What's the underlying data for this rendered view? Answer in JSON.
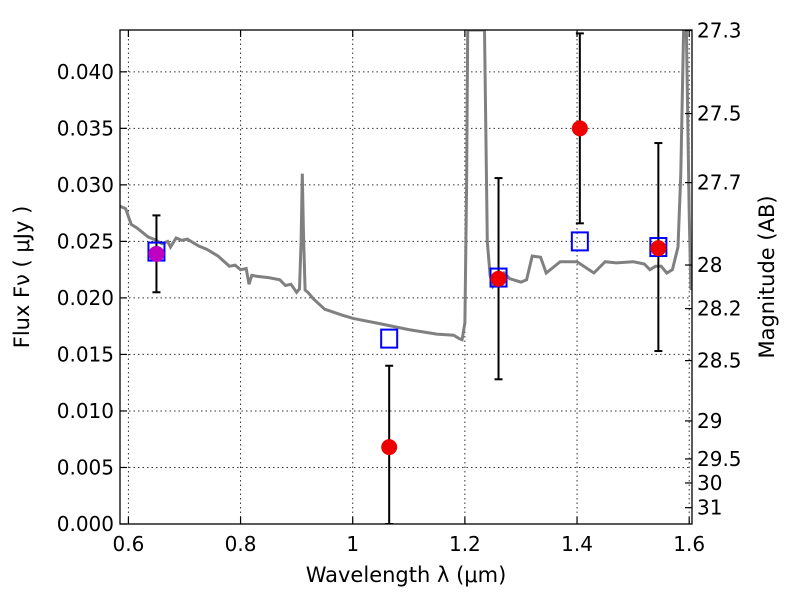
{
  "chart_data": {
    "type": "scatter",
    "xlabel": "Wavelength  λ (μm)",
    "ylabel": "Flux  Fν  ( μJy )",
    "y2label": "Magnitude (AB)",
    "xlim": [
      0.585,
      1.605
    ],
    "ylim": [
      0.0,
      0.0437
    ],
    "grid": true,
    "x_ticks": [
      {
        "v": 0.6,
        "label": "0.6"
      },
      {
        "v": 0.8,
        "label": "0.8"
      },
      {
        "v": 1.0,
        "label": "1"
      },
      {
        "v": 1.2,
        "label": "1.2"
      },
      {
        "v": 1.4,
        "label": "1.4"
      },
      {
        "v": 1.6,
        "label": "1.6"
      }
    ],
    "y_ticks": [
      {
        "v": 0.0,
        "label": "0.000"
      },
      {
        "v": 0.005,
        "label": "0.005"
      },
      {
        "v": 0.01,
        "label": "0.010"
      },
      {
        "v": 0.015,
        "label": "0.015"
      },
      {
        "v": 0.02,
        "label": "0.020"
      },
      {
        "v": 0.025,
        "label": "0.025"
      },
      {
        "v": 0.03,
        "label": "0.030"
      },
      {
        "v": 0.035,
        "label": "0.035"
      },
      {
        "v": 0.04,
        "label": "0.040"
      }
    ],
    "mag_ticks": [
      {
        "label": "27.3",
        "v": 27.3
      },
      {
        "label": "27.5",
        "v": 27.5
      },
      {
        "label": "27.7",
        "v": 27.7
      },
      {
        "label": "28",
        "v": 28.0
      },
      {
        "label": "28.2",
        "v": 28.2
      },
      {
        "label": "28.5",
        "v": 28.5
      },
      {
        "label": "29",
        "v": 29.0
      },
      {
        "label": "29.5",
        "v": 29.5
      },
      {
        "label": "30",
        "v": 30.0
      },
      {
        "label": "31",
        "v": 31.0
      }
    ],
    "model_spectrum": {
      "color": "#808080",
      "x": [
        0.585,
        0.595,
        0.605,
        0.615,
        0.625,
        0.635,
        0.645,
        0.66,
        0.67,
        0.675,
        0.685,
        0.695,
        0.705,
        0.715,
        0.725,
        0.74,
        0.76,
        0.78,
        0.79,
        0.8,
        0.81,
        0.815,
        0.82,
        0.83,
        0.85,
        0.87,
        0.88,
        0.89,
        0.9,
        0.905,
        0.908,
        0.91,
        0.912,
        0.915,
        0.92,
        0.93,
        0.95,
        0.98,
        1.0,
        1.05,
        1.1,
        1.15,
        1.18,
        1.19,
        1.195,
        1.2,
        1.203,
        1.205,
        1.21,
        1.215,
        1.235,
        1.24,
        1.245,
        1.25,
        1.26,
        1.27,
        1.28,
        1.3,
        1.31,
        1.32,
        1.335,
        1.345,
        1.37,
        1.4,
        1.43,
        1.45,
        1.47,
        1.5,
        1.52,
        1.53,
        1.54,
        1.55,
        1.56,
        1.57,
        1.58,
        1.585,
        1.59,
        1.595,
        1.6,
        1.603
      ],
      "y": [
        0.0281,
        0.0279,
        0.0265,
        0.0262,
        0.0258,
        0.0254,
        0.0252,
        0.0248,
        0.025,
        0.0245,
        0.0253,
        0.0251,
        0.0252,
        0.0249,
        0.0246,
        0.0243,
        0.0237,
        0.0228,
        0.0229,
        0.0225,
        0.0226,
        0.0212,
        0.022,
        0.0219,
        0.0218,
        0.0216,
        0.0211,
        0.0212,
        0.0205,
        0.0208,
        0.025,
        0.031,
        0.026,
        0.0207,
        0.0205,
        0.0199,
        0.019,
        0.0185,
        0.0182,
        0.0177,
        0.0172,
        0.0168,
        0.0167,
        0.0164,
        0.0163,
        0.0178,
        0.03,
        0.0437,
        0.0437,
        0.0437,
        0.0437,
        0.025,
        0.022,
        0.021,
        0.0215,
        0.0222,
        0.0217,
        0.0214,
        0.0216,
        0.0237,
        0.0236,
        0.0222,
        0.0232,
        0.0232,
        0.0222,
        0.0232,
        0.0231,
        0.0232,
        0.023,
        0.0225,
        0.0228,
        0.0228,
        0.0222,
        0.0225,
        0.0245,
        0.031,
        0.0437,
        0.0437,
        0.0275,
        0.0207
      ]
    },
    "observed": {
      "color": "#ee0000",
      "x": [
        0.65,
        1.065,
        1.26,
        1.405,
        1.545
      ],
      "y": [
        0.0239,
        0.0068,
        0.0217,
        0.035,
        0.0244
      ],
      "yerr_low": [
        0.0034,
        0.0068,
        0.0089,
        0.0084,
        0.0091
      ],
      "yerr_high": [
        0.0034,
        0.0072,
        0.0089,
        0.0084,
        0.0093
      ]
    },
    "model_photometry": {
      "color": "#0000ff",
      "x": [
        0.65,
        1.065,
        1.26,
        1.405,
        1.545
      ],
      "y": [
        0.0241,
        0.0164,
        0.0218,
        0.025,
        0.0245
      ]
    }
  }
}
